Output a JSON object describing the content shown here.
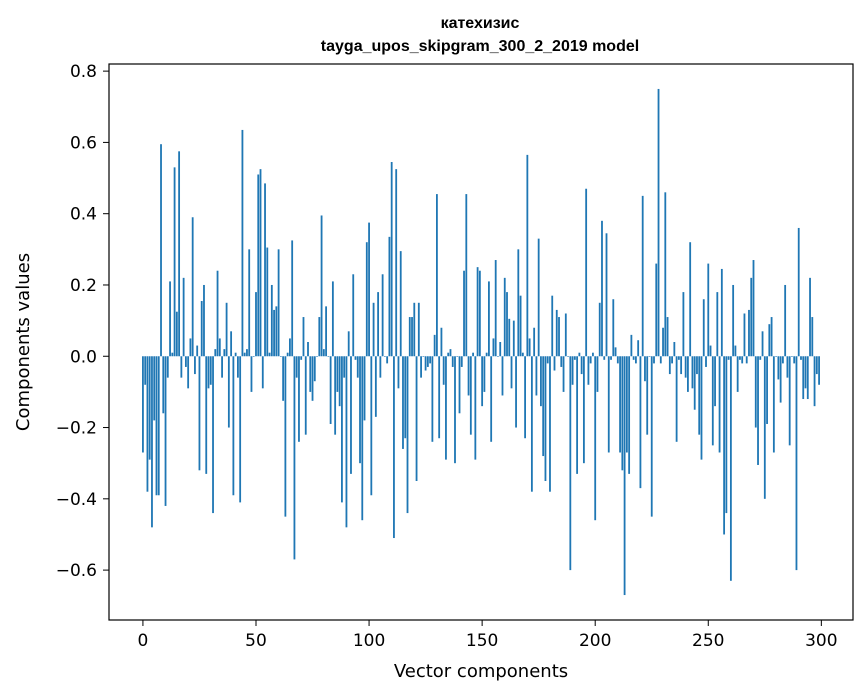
{
  "chart_data": {
    "type": "bar",
    "title": "катехизис",
    "subtitle": "tayga_upos_skipgram_300_2_2019 model",
    "xlabel": "Vector components",
    "ylabel": "Components values",
    "xlim": [
      -15,
      314
    ],
    "ylim": [
      -0.74,
      0.82
    ],
    "xticks": [
      0,
      50,
      100,
      150,
      200,
      250,
      300
    ],
    "xtick_labels": [
      "0",
      "50",
      "100",
      "150",
      "200",
      "250",
      "300"
    ],
    "yticks": [
      -0.6,
      -0.4,
      -0.2,
      0.0,
      0.2,
      0.4,
      0.6,
      0.8
    ],
    "ytick_labels": [
      "−0.6",
      "−0.4",
      "−0.2",
      "0.0",
      "0.2",
      "0.4",
      "0.6",
      "0.8"
    ],
    "bar_color": "#1f77b4",
    "grid": false,
    "values": [
      -0.27,
      -0.08,
      -0.38,
      -0.29,
      -0.48,
      -0.18,
      -0.39,
      -0.39,
      0.595,
      -0.16,
      -0.42,
      -0.06,
      0.21,
      0.01,
      0.53,
      0.125,
      0.575,
      -0.06,
      0.22,
      -0.03,
      -0.09,
      0.05,
      0.39,
      -0.05,
      0.03,
      -0.32,
      0.155,
      0.2,
      -0.33,
      -0.09,
      -0.08,
      -0.44,
      0.02,
      0.24,
      0.05,
      -0.06,
      0.02,
      0.15,
      -0.2,
      0.07,
      -0.39,
      0.01,
      -0.06,
      -0.41,
      0.635,
      0.01,
      0.02,
      0.3,
      -0.1,
      0.0,
      0.18,
      0.51,
      0.525,
      -0.09,
      0.485,
      0.305,
      0.01,
      0.2,
      0.13,
      0.14,
      0.3,
      0.0,
      -0.125,
      -0.45,
      0.01,
      0.05,
      0.325,
      -0.57,
      -0.06,
      -0.24,
      -0.01,
      0.11,
      -0.22,
      0.04,
      -0.1,
      -0.125,
      -0.07,
      0.0,
      0.11,
      0.395,
      0.02,
      0.14,
      0.0,
      -0.19,
      0.21,
      -0.22,
      -0.1,
      -0.14,
      -0.41,
      -0.06,
      -0.48,
      0.07,
      -0.33,
      0.23,
      -0.01,
      -0.06,
      -0.3,
      -0.46,
      -0.18,
      0.32,
      0.375,
      -0.39,
      0.15,
      -0.17,
      0.18,
      -0.06,
      0.23,
      0.0,
      -0.02,
      0.335,
      0.545,
      -0.51,
      0.525,
      -0.09,
      0.295,
      -0.26,
      -0.23,
      -0.44,
      0.11,
      0.11,
      0.15,
      -0.35,
      0.15,
      -0.06,
      0.0,
      -0.04,
      -0.03,
      -0.02,
      -0.24,
      0.06,
      0.455,
      -0.23,
      0.08,
      -0.08,
      -0.29,
      0.01,
      0.02,
      -0.03,
      -0.3,
      0.0,
      -0.16,
      -0.03,
      0.24,
      0.455,
      -0.11,
      -0.22,
      0.01,
      -0.29,
      0.25,
      0.24,
      -0.14,
      -0.1,
      0.01,
      0.21,
      -0.24,
      0.05,
      0.27,
      0.0,
      0.04,
      -0.11,
      0.22,
      0.18,
      0.105,
      -0.09,
      0.1,
      -0.2,
      0.3,
      0.17,
      0.01,
      -0.23,
      0.565,
      0.05,
      -0.38,
      0.08,
      -0.11,
      0.33,
      -0.14,
      -0.28,
      -0.35,
      -0.02,
      -0.38,
      0.17,
      -0.04,
      0.13,
      0.11,
      -0.03,
      -0.1,
      0.12,
      0.0,
      -0.6,
      -0.08,
      -0.01,
      -0.33,
      0.01,
      -0.05,
      -0.3,
      0.47,
      -0.08,
      -0.02,
      0.01,
      -0.46,
      -0.1,
      0.15,
      0.38,
      -0.01,
      0.345,
      -0.27,
      -0.01,
      0.16,
      0.025,
      -0.02,
      -0.27,
      -0.32,
      -0.67,
      -0.27,
      -0.33,
      0.06,
      -0.01,
      -0.02,
      0.045,
      -0.37,
      0.45,
      -0.07,
      -0.22,
      0.0,
      -0.45,
      -0.02,
      0.26,
      0.75,
      -0.02,
      0.08,
      0.46,
      0.11,
      -0.05,
      -0.02,
      0.04,
      -0.24,
      -0.01,
      -0.05,
      0.18,
      -0.06,
      -0.1,
      0.32,
      -0.09,
      -0.15,
      -0.05,
      -0.22,
      -0.29,
      0.16,
      -0.03,
      0.26,
      0.03,
      -0.25,
      -0.14,
      0.18,
      -0.27,
      0.245,
      -0.5,
      -0.44,
      -0.01,
      -0.63,
      0.2,
      0.03,
      -0.1,
      -0.01,
      -0.02,
      0.12,
      -0.02,
      0.13,
      0.22,
      0.27,
      -0.2,
      -0.305,
      -0.01,
      0.07,
      -0.4,
      -0.19,
      0.09,
      0.11,
      -0.27,
      0.0,
      -0.065,
      -0.13,
      -0.02,
      0.2,
      -0.06,
      -0.25,
      0.0,
      -0.02,
      -0.6,
      0.36,
      -0.01,
      -0.12,
      -0.09,
      -0.12,
      0.22,
      0.11,
      -0.14,
      -0.05,
      -0.08
    ]
  }
}
